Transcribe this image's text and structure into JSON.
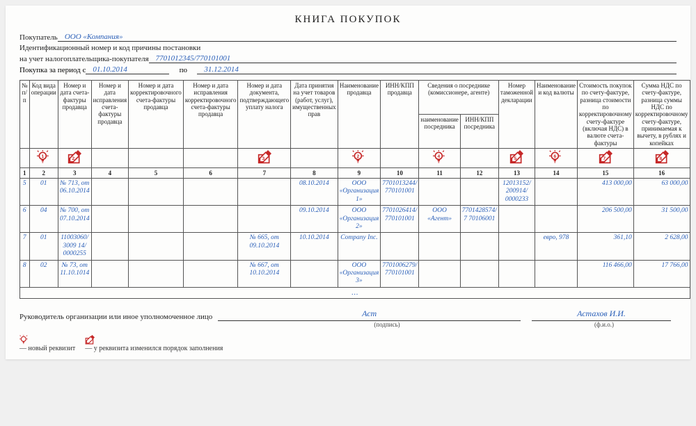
{
  "title": "КНИГА ПОКУПОК",
  "colors": {
    "accent": "#c62828",
    "ink": "#2a5fb8",
    "border": "#555555"
  },
  "header": {
    "buyer_label": "Покупатель",
    "buyer_value": "ООО «Компания»",
    "id_line1": "Идентификационный номер и код причины постановки",
    "id_line2_label": "на учет налогоплательщика-покупателя",
    "id_value": "7701012345/770101001",
    "period_label": "Покупка за период с",
    "period_from": "01.10.2014",
    "period_to_label": "по",
    "period_to": "31.12.2014"
  },
  "columns": [
    "№ п/п",
    "Код вида операции",
    "Номер и дата счета-фактуры продавца",
    "Номер и дата исправления счета-фактуры продавца",
    "Номер и дата корректировочного счета-фактуры продавца",
    "Номер и дата исправления корректировочного счета-фактуры продавца",
    "Номер и дата документа, подтверждающего уплату налога",
    "Дата принятия на учет товаров (работ, услуг), имущественных прав",
    "Наименование продавца",
    "ИНН/КПП продавца",
    "Сведения о посреднике (комиссионере, агенте)",
    "Номер таможенной декларации",
    "Наименование и код валюты",
    "Стоимость покупок по счету-фактуре, разница стоимости по корректировочному счету-фактуре (включая НДС) в валюте счета-фактуры",
    "Сумма НДС по счету-фактуре, разница суммы НДС по корректировочному счету-фактуре, принимаемая к вычету, в рублях и копейках"
  ],
  "subcol": {
    "c11a": "наименование посредника",
    "c11b": "ИНН/КПП посредника"
  },
  "icons": {
    "bulb_cols": [
      2,
      9,
      11,
      14
    ],
    "pencil_cols": [
      3,
      7,
      13,
      15,
      16
    ],
    "bulb_nums": {
      "2": "1",
      "9": "2",
      "11": "4",
      "14": "6"
    },
    "pencil_nums": {
      "3": "2",
      "7": "3",
      "13": "5",
      "15": "7",
      "16": "8"
    }
  },
  "numbers": [
    "1",
    "2",
    "3",
    "4",
    "5",
    "6",
    "7",
    "8",
    "9",
    "10",
    "11",
    "12",
    "13",
    "14",
    "15",
    "16"
  ],
  "rows": [
    {
      "n": "5",
      "c2": "01",
      "c3": "№ 713, от 06.10.2014",
      "c4": "",
      "c5": "",
      "c6": "",
      "c7": "",
      "c8": "08.10.2014",
      "c9": "ООО «Организация 1»",
      "c10": "7701013244/ 770101001",
      "c11": "",
      "c12": "",
      "c13": "12013152/ 200914/ 0000233",
      "c14": "",
      "c15": "413 000,00",
      "c16": "63 000,00"
    },
    {
      "n": "6",
      "c2": "04",
      "c3": "№ 700, от 07.10.2014",
      "c4": "",
      "c5": "",
      "c6": "",
      "c7": "",
      "c8": "09.10.2014",
      "c9": "ООО «Организация 2»",
      "c10": "7701026414/ 770101001",
      "c11": "ООО «Агент»",
      "c12": "7701428574/ 7 70106001",
      "c13": "",
      "c14": "",
      "c15": "206 500,00",
      "c16": "31 500,00"
    },
    {
      "n": "7",
      "c2": "01",
      "c3": "11003060/3009 14/0000255",
      "c4": "",
      "c5": "",
      "c6": "",
      "c7": "№ 665, от 09.10.2014",
      "c8": "10.10.2014",
      "c9": "Company Inc.",
      "c10": "",
      "c11": "",
      "c12": "",
      "c13": "",
      "c14": "евро, 978",
      "c15": "361,10",
      "c16": "2 628,00"
    },
    {
      "n": "8",
      "c2": "02",
      "c3": "№ 73, от 11.10.1014",
      "c4": "",
      "c5": "",
      "c6": "",
      "c7": "№ 667, от 10.10.2014",
      "c8": "",
      "c9": "ООО «Организация 3»",
      "c10": "7701006279/ 770101001",
      "c11": "",
      "c12": "",
      "c13": "",
      "c14": "",
      "c15": "116 466,00",
      "c16": "17 766,00"
    }
  ],
  "footer": {
    "manager_label": "Руководитель организации или иное уполномоченное лицо",
    "signature": "Аст",
    "name": "Астахов И.И.",
    "cap_sign": "(подпись)",
    "cap_name": "(ф.и.о.)"
  },
  "legend": {
    "bulb": "— новый реквизит",
    "pencil": "— у реквизита изменился порядок заполнения"
  },
  "col_widths_pct": [
    2.2,
    3.2,
    7.8,
    6.0,
    6.0,
    6.5,
    6.5,
    7.0,
    7.0,
    7.5,
    5.5,
    6.8,
    7.0,
    5.5,
    8.0,
    7.5
  ]
}
